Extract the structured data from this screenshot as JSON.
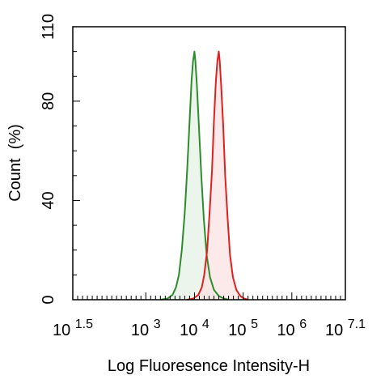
{
  "chart_data": {
    "type": "area",
    "xlabel": "Log Fluoresence Intensity-H",
    "ylabel": "Count  (%)",
    "x_scale": "log10",
    "xlim": [
      1.5,
      7.1
    ],
    "ylim": [
      0,
      110
    ],
    "x_ticks": [
      {
        "value": 1.5,
        "base": "10",
        "exp": "1.5"
      },
      {
        "value": 3,
        "base": "10",
        "exp": "3"
      },
      {
        "value": 4,
        "base": "10",
        "exp": "4"
      },
      {
        "value": 5,
        "base": "10",
        "exp": "5"
      },
      {
        "value": 6,
        "base": "10",
        "exp": "6"
      },
      {
        "value": 7.1,
        "base": "10",
        "exp": "7.1"
      }
    ],
    "y_ticks": [
      {
        "value": 0,
        "label": "0"
      },
      {
        "value": 40,
        "label": "40"
      },
      {
        "value": 80,
        "label": "80"
      },
      {
        "value": 110,
        "label": "110"
      }
    ],
    "grid": false,
    "series": [
      {
        "color": "#2e8b2e",
        "fill": "#e6f2e4",
        "points": [
          [
            3.3,
            0
          ],
          [
            3.45,
            0.5
          ],
          [
            3.55,
            2
          ],
          [
            3.62,
            5
          ],
          [
            3.68,
            10
          ],
          [
            3.74,
            20
          ],
          [
            3.8,
            35
          ],
          [
            3.85,
            52
          ],
          [
            3.9,
            72
          ],
          [
            3.94,
            88
          ],
          [
            3.97,
            96
          ],
          [
            4.0,
            100
          ],
          [
            4.02,
            96
          ],
          [
            4.05,
            86
          ],
          [
            4.09,
            70
          ],
          [
            4.14,
            50
          ],
          [
            4.19,
            33
          ],
          [
            4.25,
            18
          ],
          [
            4.32,
            9
          ],
          [
            4.4,
            4
          ],
          [
            4.5,
            1.5
          ],
          [
            4.6,
            0.5
          ],
          [
            4.7,
            0
          ]
        ]
      },
      {
        "color": "#e02020",
        "fill": "#fbe3e3",
        "points": [
          [
            3.85,
            0
          ],
          [
            3.98,
            0.5
          ],
          [
            4.08,
            2
          ],
          [
            4.15,
            5
          ],
          [
            4.2,
            10
          ],
          [
            4.26,
            20
          ],
          [
            4.31,
            35
          ],
          [
            4.36,
            52
          ],
          [
            4.4,
            72
          ],
          [
            4.44,
            88
          ],
          [
            4.47,
            96
          ],
          [
            4.5,
            100
          ],
          [
            4.52,
            96
          ],
          [
            4.55,
            86
          ],
          [
            4.59,
            70
          ],
          [
            4.63,
            50
          ],
          [
            4.68,
            33
          ],
          [
            4.73,
            18
          ],
          [
            4.79,
            9
          ],
          [
            4.86,
            4
          ],
          [
            4.94,
            1.5
          ],
          [
            5.02,
            0.5
          ],
          [
            5.1,
            0
          ]
        ]
      }
    ]
  }
}
